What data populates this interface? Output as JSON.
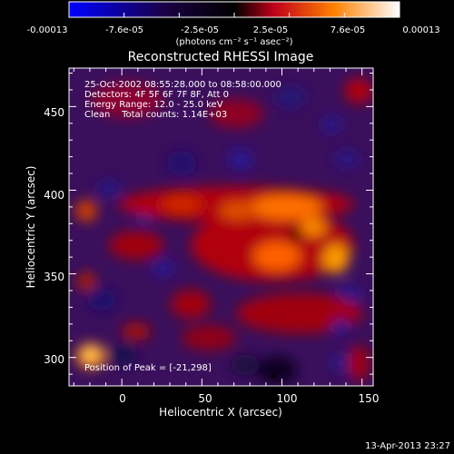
{
  "colorbar": {
    "tick_labels": [
      "-0.00013",
      "-7.6e-05",
      "-2.5e-05",
      "2.5e-05",
      "7.6e-05",
      "0.00013"
    ],
    "units": "(photons cm⁻² s⁻¹ asec⁻²)",
    "range": [
      -0.00013,
      0.00013
    ],
    "colors": [
      "#0000ff",
      "#1a0033",
      "#000000",
      "#c0001a",
      "#ff8000",
      "#ffffff"
    ]
  },
  "plot": {
    "title": "Reconstructed RHESSI Image",
    "xlabel": "Heliocentric X (arcsec)",
    "ylabel": "Heliocentric Y (arcsec)",
    "x_ticks": [
      "0",
      "50",
      "100",
      "150"
    ],
    "y_ticks": [
      "300",
      "350",
      "400",
      "450"
    ],
    "x_range": [
      -33,
      157
    ],
    "y_range": [
      283,
      473
    ],
    "info_lines": [
      "25-Oct-2002 08:55:28.000 to 08:58:00.000",
      "Detectors: 4F 5F 6F 7F 8F, Att 0",
      "Energy Range: 12.0 - 25.0 keV",
      "Clean    Total counts: 1.14E+03"
    ],
    "peak_label": "Position of Peak = [-21,298]",
    "peak_position": [
      -21,
      298
    ]
  },
  "footer": {
    "timestamp": "13-Apr-2013 23:27"
  }
}
